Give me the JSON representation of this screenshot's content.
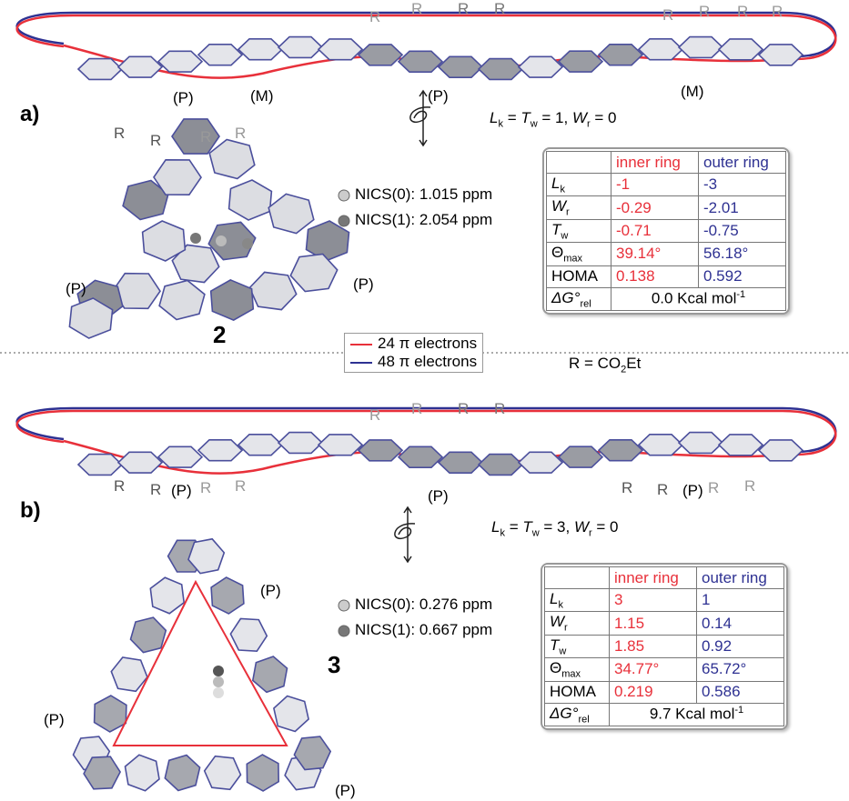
{
  "panels": [
    {
      "label": "a)",
      "compound": "2",
      "ribbon_substituents": [
        "R",
        "R",
        "R",
        "R",
        "R",
        "R",
        "R",
        "R",
        "R",
        "R",
        "R",
        "R"
      ],
      "ribbon_helicity": [
        "(P)",
        "(P)",
        "(M)"
      ],
      "molecule_helicity": [
        "(M)",
        "(P)",
        "(P)"
      ],
      "equation": [
        {
          "t": "L",
          "italic": true
        },
        {
          "t": "k",
          "sub": true
        },
        {
          "t": " = "
        },
        {
          "t": "T",
          "italic": true
        },
        {
          "t": "w",
          "sub": true
        },
        {
          "t": " = 1,  "
        },
        {
          "t": "W",
          "italic": true
        },
        {
          "t": "r",
          "sub": true
        },
        {
          "t": " = 0"
        }
      ],
      "nics": [
        "NICS(0): 1.015 ppm",
        "NICS(1): 2.054 ppm"
      ],
      "table": {
        "header": [
          "inner ring",
          "outer ring"
        ],
        "rows": [
          {
            "symbol": "L",
            "sub": "k",
            "italic": true,
            "inner": "-1",
            "outer": "-3"
          },
          {
            "symbol": "W",
            "sub": "r",
            "italic": true,
            "inner": "-0.29",
            "outer": "-2.01"
          },
          {
            "symbol": "T",
            "sub": "w",
            "italic": true,
            "inner": "-0.71",
            "outer": "-0.75"
          },
          {
            "symbol": "Θ",
            "sub": "max",
            "italic": false,
            "inner": "39.14°",
            "outer": "56.18°"
          },
          {
            "symbol": "HOMA",
            "italic": false,
            "inner": "0.138",
            "outer": "0.592"
          }
        ],
        "energy": {
          "symbol": "ΔG°",
          "sub": "rel",
          "value": "0.0 Kcal mol",
          "sup": "-1"
        }
      }
    },
    {
      "label": "b)",
      "compound": "3",
      "ribbon_substituents": [
        "R",
        "R",
        "R",
        "R",
        "R",
        "R",
        "R",
        "R",
        "R",
        "R",
        "R",
        "R"
      ],
      "ribbon_helicity": [
        "(P)",
        "(P)",
        "(P)"
      ],
      "molecule_helicity": [
        "(P)",
        "(P)",
        "(P)"
      ],
      "equation": [
        {
          "t": "L",
          "italic": true
        },
        {
          "t": "k",
          "sub": true
        },
        {
          "t": " = "
        },
        {
          "t": "T",
          "italic": true
        },
        {
          "t": "w",
          "sub": true
        },
        {
          "t": " = 3,  "
        },
        {
          "t": "W",
          "italic": true
        },
        {
          "t": "r",
          "sub": true
        },
        {
          "t": " = 0"
        }
      ],
      "nics": [
        "NICS(0): 0.276 ppm",
        "NICS(1): 0.667 ppm"
      ],
      "table": {
        "header": [
          "inner ring",
          "outer ring"
        ],
        "rows": [
          {
            "symbol": "L",
            "sub": "k",
            "italic": true,
            "inner": "3",
            "outer": "1"
          },
          {
            "symbol": "W",
            "sub": "r",
            "italic": true,
            "inner": "1.15",
            "outer": "0.14"
          },
          {
            "symbol": "T",
            "sub": "w",
            "italic": true,
            "inner": "1.85",
            "outer": "0.92"
          },
          {
            "symbol": "Θ",
            "sub": "max",
            "italic": false,
            "inner": "34.77°",
            "outer": "65.72°"
          },
          {
            "symbol": "HOMA",
            "italic": false,
            "inner": "0.219",
            "outer": "0.586"
          }
        ],
        "energy": {
          "symbol": "ΔG°",
          "sub": "rel",
          "value": "9.7 Kcal mol",
          "sup": "-1"
        }
      }
    }
  ],
  "legend": [
    {
      "name": "24 π electrons",
      "color": "#e8303a"
    },
    {
      "name": "48 π electrons",
      "color": "#2e3192"
    }
  ],
  "substituent": [
    {
      "t": "R = CO"
    },
    {
      "t": "2",
      "sub": true
    },
    {
      "t": "Et"
    }
  ]
}
